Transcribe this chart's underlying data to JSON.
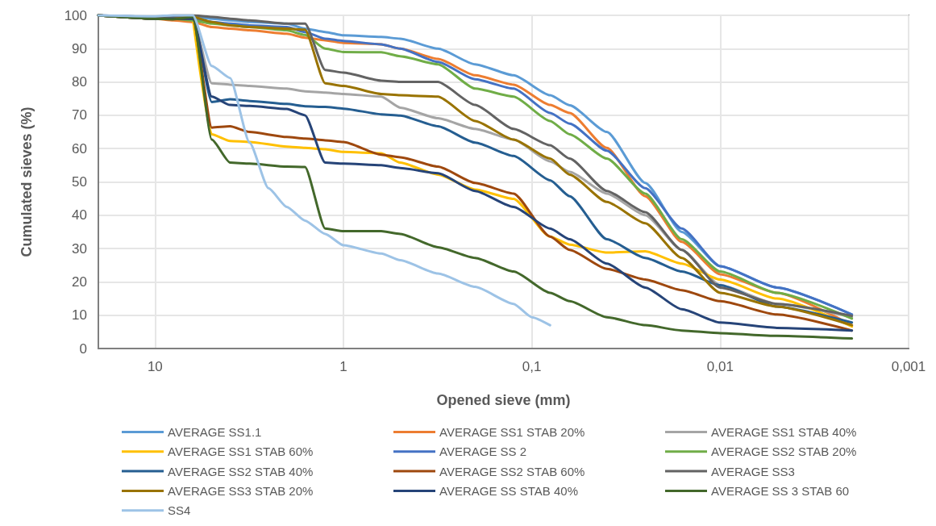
{
  "chart_data": {
    "type": "line",
    "xlabel": "Opened sieve (mm)",
    "ylabel": "Cumulated sieves (%)",
    "log": "x",
    "grid": "xy",
    "legend": "bottom",
    "marker": "none",
    "line_style": "solid",
    "xlim": [
      20,
      0.001
    ],
    "xticks": [
      10,
      1,
      {
        "value": 0.1,
        "label": "0,1"
      },
      {
        "value": 0.01,
        "label": "0,01"
      },
      {
        "value": 0.001,
        "label": "0,001"
      }
    ],
    "ylim": [
      0,
      100
    ],
    "yticks": [
      0,
      10,
      20,
      30,
      40,
      50,
      60,
      70,
      80,
      90,
      100
    ],
    "x": [
      20,
      10,
      8,
      6.3,
      5,
      4,
      3.15,
      2,
      1.6,
      1.25,
      1,
      0.63,
      0.5,
      0.315,
      0.2,
      0.125,
      0.08,
      0.063,
      0.04,
      0.025,
      0.016,
      0.01,
      0.005,
      0.002
    ],
    "series": [
      {
        "name": "AVERAGE SS1.1",
        "color": "#5b9bd5",
        "values": [
          100,
          99.5,
          99.5,
          99.5,
          99,
          98.5,
          98,
          97.5,
          96,
          95,
          94,
          93.5,
          93,
          90,
          85.3,
          82,
          76,
          73,
          65,
          49.7,
          35,
          24.7,
          18.3,
          10.2
        ]
      },
      {
        "name": "AVERAGE SS1 STAB 20%",
        "color": "#ed7d31",
        "values": [
          100,
          99,
          98.5,
          98,
          96.5,
          96,
          95.5,
          94.5,
          93.3,
          92.5,
          91.7,
          91.3,
          90,
          86.9,
          82,
          79.2,
          73.1,
          70.7,
          60.2,
          45.7,
          32,
          22.3,
          16.7,
          7
        ]
      },
      {
        "name": "AVERAGE SS1 STAB 40%",
        "color": "#a5a5a5",
        "values": [
          100,
          99,
          99,
          99,
          79.6,
          79.2,
          78.8,
          78,
          77.2,
          76.8,
          76.4,
          75.6,
          72.3,
          69.1,
          65.9,
          62.7,
          56.2,
          53,
          46.5,
          40,
          29.6,
          19,
          13.4,
          9.4
        ]
      },
      {
        "name": "AVERAGE SS1 STAB 60%",
        "color": "#ffc000",
        "values": [
          null,
          null,
          null,
          99,
          64.3,
          62.3,
          62,
          60.6,
          60.2,
          59.8,
          59,
          58.6,
          55.8,
          52.2,
          47.7,
          44.9,
          33.6,
          31.2,
          28.8,
          29.2,
          25.5,
          20.7,
          15,
          6.6
        ]
      },
      {
        "name": "AVERAGE SS 2",
        "color": "#4472c4",
        "values": [
          100,
          99.5,
          99.5,
          99,
          98,
          97.5,
          97,
          96.5,
          95,
          93,
          92.3,
          91.3,
          90,
          86,
          80.8,
          78,
          70.7,
          67.5,
          59.4,
          48.1,
          36,
          24.7,
          18.3,
          10.2
        ]
      },
      {
        "name": "AVERAGE SS2 STAB 20%",
        "color": "#70ad47",
        "values": [
          100,
          99,
          99,
          98.5,
          97.5,
          97,
          96.5,
          95.5,
          94.1,
          90,
          89,
          88.9,
          87.7,
          85.3,
          78,
          75.6,
          68.3,
          64.3,
          57,
          46.5,
          32.8,
          23.1,
          16.7,
          9
        ]
      },
      {
        "name": "AVERAGE SS2 STAB 40%",
        "color": "#255e91",
        "values": [
          100,
          99,
          99,
          99,
          74,
          74.8,
          74.3,
          73.4,
          72.7,
          72.5,
          72,
          70.3,
          69.9,
          66.7,
          61.8,
          57.8,
          50.5,
          45.7,
          32.8,
          27.2,
          23.1,
          19,
          12.6,
          7.8
        ]
      },
      {
        "name": "AVERAGE SS2 STAB 60%",
        "color": "#9e480e",
        "values": [
          100,
          99,
          99,
          99,
          66.3,
          66.7,
          65,
          63.5,
          63,
          62.5,
          62,
          58.2,
          57.4,
          54.6,
          49.7,
          46.5,
          33.6,
          29.6,
          23.9,
          20.7,
          17.5,
          14.2,
          10.2,
          5.4
        ]
      },
      {
        "name": "AVERAGE SS3",
        "color": "#636363",
        "values": [
          100,
          99.5,
          100,
          100,
          99.5,
          99,
          98.5,
          97.5,
          97.5,
          83.6,
          82.8,
          80.4,
          80,
          80,
          73.1,
          65.9,
          61,
          57,
          47.3,
          40.9,
          29.6,
          18.3,
          13.4,
          9.8
        ]
      },
      {
        "name": "AVERAGE SS3 STAB 20%",
        "color": "#997300",
        "values": [
          100,
          99,
          99,
          99.5,
          98,
          97,
          96.5,
          96,
          95.7,
          79.6,
          78.8,
          76.4,
          76,
          75.6,
          68.3,
          62.7,
          57,
          52.2,
          44,
          37.6,
          27.2,
          16.7,
          12.6,
          7
        ]
      },
      {
        "name": "AVERAGE SS STAB 40%",
        "color": "#264478",
        "values": [
          100,
          99,
          99,
          99,
          75.6,
          73.1,
          72.8,
          71.9,
          70,
          55.8,
          55.5,
          55,
          54.2,
          52.6,
          47.3,
          42.5,
          36,
          32.8,
          25.5,
          18.3,
          11.8,
          7.8,
          6.2,
          5.4
        ]
      },
      {
        "name": "AVERAGE SS 3 STAB 60",
        "color": "#43682b",
        "values": [
          100,
          99,
          98.8,
          99.5,
          62.7,
          55.8,
          55.5,
          54.6,
          54.5,
          36,
          35.2,
          35.2,
          34.4,
          30.4,
          27.2,
          23.1,
          16.7,
          14.2,
          9.4,
          7,
          5.4,
          4.6,
          3.8,
          3
        ]
      },
      {
        "name": "SS4",
        "color": "#9dc3e6",
        "x": [
          20,
          10,
          8,
          7,
          6.3,
          5,
          4,
          3.15,
          2.5,
          2,
          1.6,
          1.25,
          1,
          0.63,
          0.5,
          0.315,
          0.2,
          0.125,
          0.1,
          0.08
        ],
        "values": [
          100,
          99.7,
          100,
          100,
          100,
          84.8,
          81.2,
          61.8,
          48.1,
          42.5,
          38.4,
          34.4,
          31,
          28.5,
          26.5,
          22.5,
          18.5,
          13.4,
          9.4,
          7
        ]
      }
    ]
  }
}
